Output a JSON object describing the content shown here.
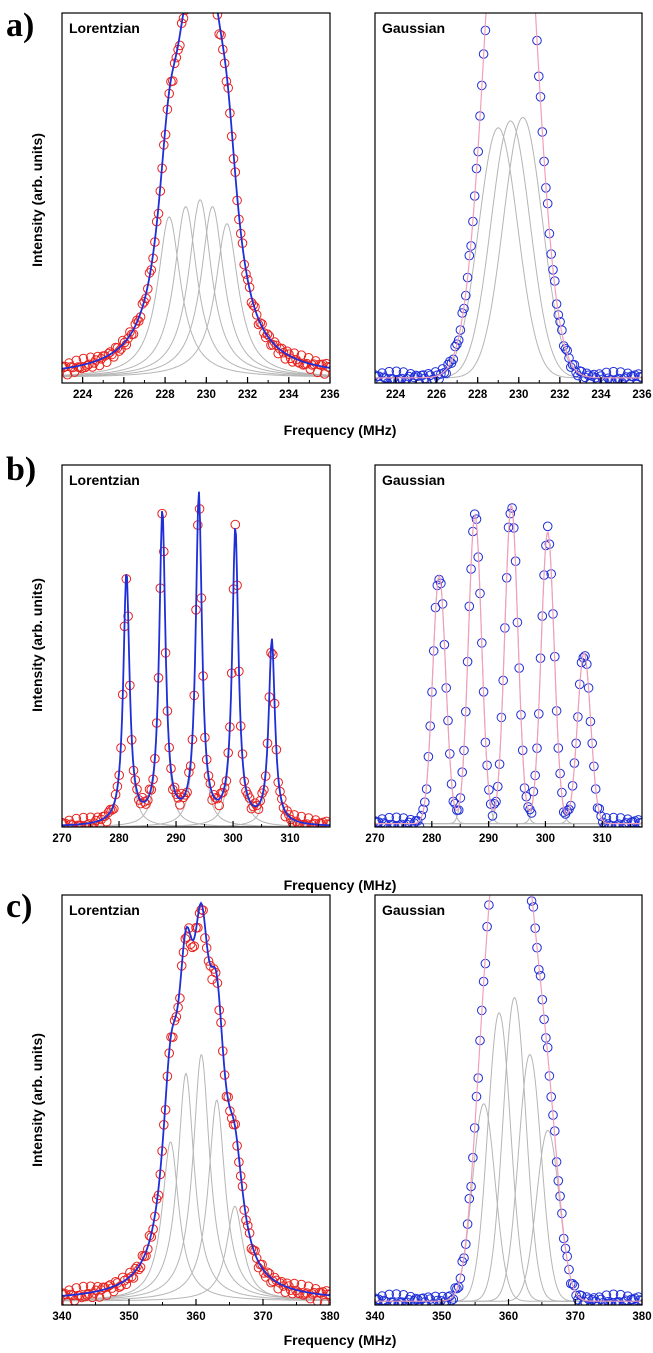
{
  "colors": {
    "experimental_red": "#e8231e",
    "experimental_blue": "#1f2fd8",
    "fit_red": "#e8231e",
    "fit_blue": "#1f2fd8",
    "envelope_pink": "#f0a0b8",
    "components_gray": "#b5b5b5"
  },
  "chart_data": [
    {
      "id": "a-lorentzian",
      "row_label": "a)",
      "title": "Lorentzian",
      "type": "line",
      "xlabel": "Frequency (MHz)",
      "ylabel": "Intensity (arb. units)",
      "xlim": [
        223,
        236
      ],
      "ylim": [
        0,
        1.08
      ],
      "xticks": [
        224,
        226,
        228,
        230,
        232,
        234,
        236
      ],
      "yticks_shown": false,
      "data_style": "red-circles",
      "fit_style": "blue-line",
      "components_style": "gray-lines",
      "components": [
        {
          "center": 228.2,
          "height": 0.47,
          "width": 1.35
        },
        {
          "center": 229.0,
          "height": 0.5,
          "width": 1.35
        },
        {
          "center": 229.7,
          "height": 0.52,
          "width": 1.35
        },
        {
          "center": 230.3,
          "height": 0.5,
          "width": 1.35
        },
        {
          "center": 231.0,
          "height": 0.45,
          "width": 1.35
        }
      ],
      "baseline": 0.015
    },
    {
      "id": "a-gaussian",
      "row_label": "",
      "title": "Gaussian",
      "type": "line",
      "xlabel": "Frequency (MHz)",
      "ylabel": "",
      "xlim": [
        223,
        236
      ],
      "ylim": [
        0,
        1.08
      ],
      "xticks": [
        224,
        226,
        228,
        230,
        232,
        234,
        236
      ],
      "yticks_shown": false,
      "data_style": "blue-circles",
      "fit_style": "pink-line",
      "components_style": "gray-lines",
      "components": [
        {
          "center": 229.0,
          "height": 0.73,
          "width": 0.95
        },
        {
          "center": 229.6,
          "height": 0.75,
          "width": 0.95
        },
        {
          "center": 230.2,
          "height": 0.76,
          "width": 0.95
        }
      ],
      "baseline": 0.015
    },
    {
      "id": "b-lorentzian",
      "row_label": "b)",
      "title": "Lorentzian",
      "type": "line",
      "xlabel": "Frequency (MHz)",
      "ylabel": "Intensity (arb. units)",
      "xlim": [
        270,
        317
      ],
      "ylim": [
        0,
        1.08
      ],
      "xticks": [
        270,
        280,
        290,
        300,
        310
      ],
      "yticks_shown": false,
      "data_style": "red-circles",
      "fit_style": "blue-line",
      "components_style": "gray-lines",
      "components": [
        {
          "center": 281.3,
          "height": 0.75,
          "width": 1.3
        },
        {
          "center": 287.6,
          "height": 0.93,
          "width": 1.3
        },
        {
          "center": 294.0,
          "height": 0.98,
          "width": 1.3
        },
        {
          "center": 300.4,
          "height": 0.88,
          "width": 1.3
        },
        {
          "center": 306.8,
          "height": 0.55,
          "width": 1.3
        }
      ],
      "baseline": 0.0
    },
    {
      "id": "b-gaussian",
      "row_label": "",
      "title": "Gaussian",
      "type": "line",
      "xlabel": "Frequency (MHz)",
      "ylabel": "",
      "xlim": [
        270,
        317
      ],
      "ylim": [
        0,
        1.08
      ],
      "xticks": [
        270,
        280,
        290,
        300,
        310
      ],
      "yticks_shown": false,
      "data_style": "blue-circles",
      "fit_style": "pink-line",
      "components_style": "gray-lines",
      "components": [
        {
          "center": 281.3,
          "height": 0.74,
          "width": 1.15
        },
        {
          "center": 287.6,
          "height": 0.92,
          "width": 1.15
        },
        {
          "center": 294.0,
          "height": 0.95,
          "width": 1.15
        },
        {
          "center": 300.4,
          "height": 0.87,
          "width": 1.15
        },
        {
          "center": 306.8,
          "height": 0.51,
          "width": 1.15
        }
      ],
      "baseline": 0.01
    },
    {
      "id": "c-lorentzian",
      "row_label": "c)",
      "title": "Lorentzian",
      "type": "line",
      "xlabel": "Frequency (MHz)",
      "ylabel": "Intensity (arb. units)",
      "xlim": [
        340,
        380
      ],
      "ylim": [
        0,
        1.08
      ],
      "xticks": [
        340,
        350,
        360,
        370,
        380
      ],
      "yticks_shown": false,
      "data_style": "red-circles",
      "fit_style": "blue-line",
      "components_style": "gray-lines",
      "components": [
        {
          "center": 356.2,
          "height": 0.42,
          "width": 3.0
        },
        {
          "center": 358.5,
          "height": 0.6,
          "width": 3.0
        },
        {
          "center": 360.8,
          "height": 0.65,
          "width": 3.0
        },
        {
          "center": 363.1,
          "height": 0.53,
          "width": 3.0
        },
        {
          "center": 365.8,
          "height": 0.25,
          "width": 3.0
        }
      ],
      "baseline": 0.01
    },
    {
      "id": "c-gaussian",
      "row_label": "",
      "title": "Gaussian",
      "type": "line",
      "xlabel": "Frequency (MHz)",
      "ylabel": "",
      "xlim": [
        340,
        380
      ],
      "ylim": [
        0,
        1.08
      ],
      "xticks": [
        340,
        350,
        360,
        370,
        380
      ],
      "yticks_shown": false,
      "data_style": "blue-circles",
      "fit_style": "pink-line",
      "components_style": "gray-lines",
      "components": [
        {
          "center": 356.3,
          "height": 0.52,
          "width": 1.7
        },
        {
          "center": 358.6,
          "height": 0.76,
          "width": 1.7
        },
        {
          "center": 360.9,
          "height": 0.8,
          "width": 1.7
        },
        {
          "center": 363.2,
          "height": 0.65,
          "width": 1.7
        },
        {
          "center": 365.9,
          "height": 0.45,
          "width": 1.7
        }
      ],
      "baseline": 0.01
    }
  ],
  "frequency_label": "Frequency (MHz)"
}
